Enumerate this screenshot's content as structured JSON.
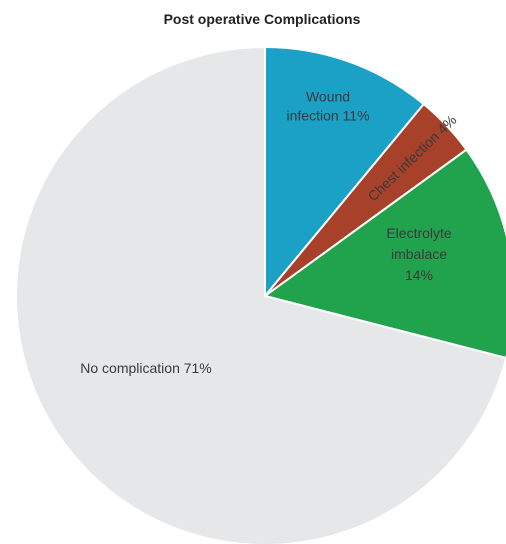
{
  "chart_data": {
    "type": "pie",
    "title": "Post operative Complications",
    "slices": [
      {
        "label_lines": [
          "Wound",
          "infection 11%"
        ],
        "value": 11,
        "color": "#1ba0c6"
      },
      {
        "label_lines": [
          "Chest infection 4%"
        ],
        "value": 4,
        "color": "#a7412a"
      },
      {
        "label_lines": [
          "Electrolyte",
          "imbalace",
          "14%"
        ],
        "value": 14,
        "color": "#21a24c"
      },
      {
        "label_lines": [
          "No complication 71%"
        ],
        "value": 71,
        "color": "#e6e7e8"
      }
    ],
    "start_angle": "12 o'clock",
    "direction": "clockwise",
    "legend": "none"
  }
}
